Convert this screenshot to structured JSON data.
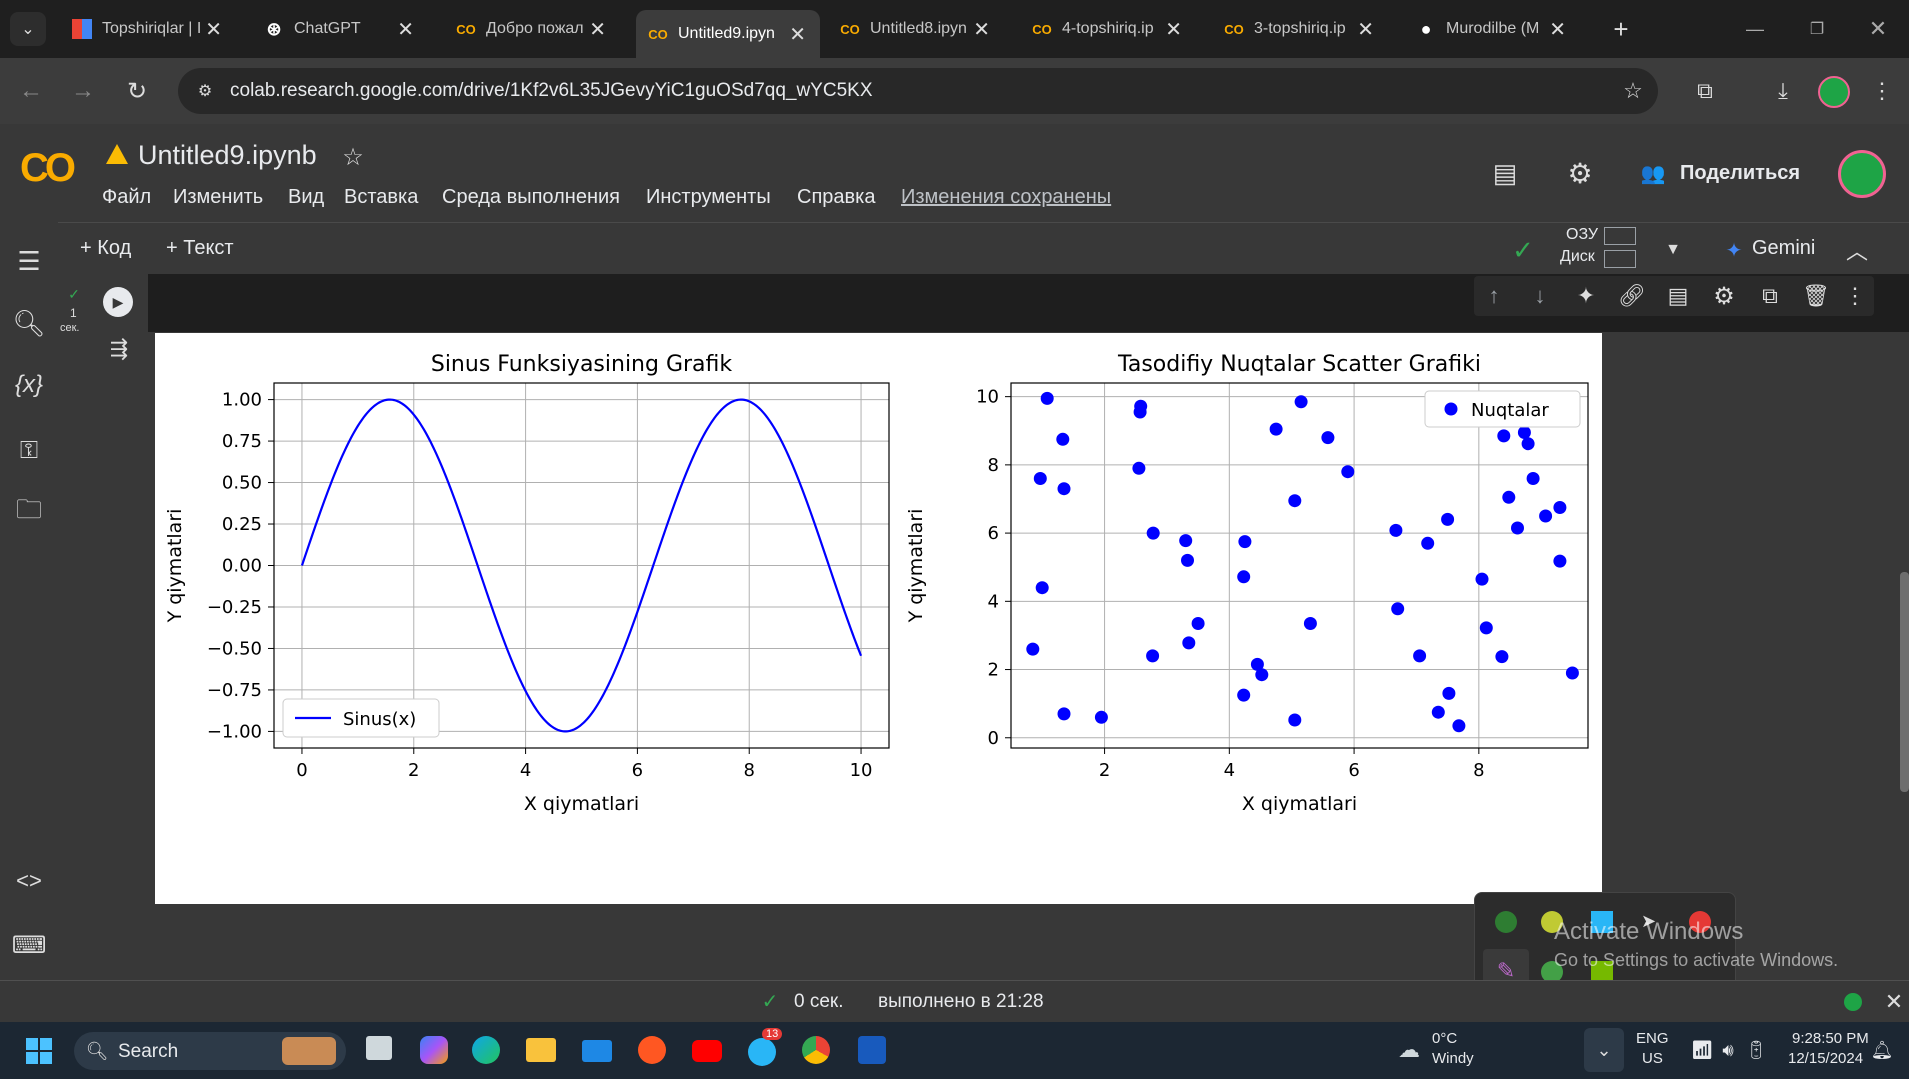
{
  "browser": {
    "tabs": [
      {
        "title": "Topshiriqlar | I",
        "icon": "grid-favicon"
      },
      {
        "title": "ChatGPT",
        "icon": "chatgpt-favicon"
      },
      {
        "title": "Добро пожал",
        "icon": "colab-favicon"
      },
      {
        "title": "Untitled9.ipyn",
        "icon": "colab-favicon"
      },
      {
        "title": "Untitled8.ipyn",
        "icon": "colab-favicon"
      },
      {
        "title": "4-topshiriq.ip",
        "icon": "colab-favicon"
      },
      {
        "title": "3-topshiriq.ip",
        "icon": "colab-favicon"
      },
      {
        "title": "Murodilbe (M",
        "icon": "github-favicon"
      }
    ],
    "url": "colab.research.google.com/drive/1Kf2v6L35JGevyYiC1guOSd7qq_wYC5KX"
  },
  "colab": {
    "logo": "CO",
    "notebook_title": "Untitled9.ipynb",
    "menu": [
      "Файл",
      "Изменить",
      "Вид",
      "Вставка",
      "Среда выполнения",
      "Инструменты",
      "Справка"
    ],
    "saved_status": "Изменения сохранены",
    "share_label": "Поделиться",
    "add_code": "+ Код",
    "add_text": "+ Текст",
    "ram_label": "ОЗУ",
    "disk_label": "Диск",
    "gemini_label": "Gemini",
    "cell_exec_count": "1",
    "cell_exec_time": "сек."
  },
  "status": {
    "time_taken": "0 сек.",
    "completed": "выполнено в 21:28"
  },
  "popup": {
    "activate_title": "Activate Windows",
    "activate_sub": "Go to Settings to activate Windows."
  },
  "taskbar": {
    "search_label": "Search",
    "weather_temp": "0°C",
    "weather_desc": "Windy",
    "lang": "ENG",
    "region": "US",
    "time": "9:28:50 PM",
    "date": "12/15/2024",
    "telegram_badge": "13"
  },
  "colors": {
    "series": "#0000ff",
    "grid": "#b0b0b0"
  },
  "chart_data": [
    {
      "type": "line",
      "title": "Sinus Funksiyasining Grafik",
      "xlabel": "X qiymatlari",
      "ylabel": "Y qiymatlari",
      "xlim": [
        0,
        10
      ],
      "ylim": [
        -1.0,
        1.0
      ],
      "xticks": [
        "0",
        "2",
        "4",
        "6",
        "8",
        "10"
      ],
      "yticks": [
        "1.00",
        "0.75",
        "0.50",
        "0.25",
        "0.00",
        "−0.25",
        "−0.50",
        "−0.75",
        "−1.00"
      ],
      "function": "sin(x)",
      "x": [
        0,
        0.25,
        0.5,
        0.75,
        1,
        1.25,
        1.5,
        1.75,
        2,
        2.25,
        2.5,
        2.75,
        3,
        3.25,
        3.5,
        3.75,
        4,
        4.25,
        4.5,
        4.75,
        5,
        5.25,
        5.5,
        5.75,
        6,
        6.25,
        6.5,
        6.75,
        7,
        7.25,
        7.5,
        7.75,
        8,
        8.25,
        8.5,
        8.75,
        9,
        9.25,
        9.5,
        9.75,
        10
      ],
      "series": [
        {
          "name": "Sinus(x)",
          "y": [
            0,
            0.247,
            0.479,
            0.682,
            0.841,
            0.949,
            0.997,
            0.984,
            0.909,
            0.778,
            0.598,
            0.382,
            0.141,
            -0.108,
            -0.351,
            -0.572,
            -0.757,
            -0.895,
            -0.978,
            -0.999,
            -0.959,
            -0.859,
            -0.706,
            -0.508,
            -0.279,
            -0.033,
            0.215,
            0.451,
            0.657,
            0.823,
            0.938,
            0.995,
            0.989,
            0.923,
            0.798,
            0.625,
            0.412,
            0.174,
            -0.075,
            -0.319,
            -0.544
          ]
        }
      ],
      "legend": "lower-left",
      "grid": true
    },
    {
      "type": "scatter",
      "title": "Tasodifiy Nuqtalar Scatter Grafiki",
      "xlabel": "X qiymatlari",
      "ylabel": "Y qiymatlari",
      "xlim": [
        0.5,
        9.75
      ],
      "ylim": [
        -0.3,
        10.4
      ],
      "xticks": [
        "2",
        "4",
        "6",
        "8"
      ],
      "yticks": [
        "0",
        "2",
        "4",
        "6",
        "8",
        "10"
      ],
      "series": [
        {
          "name": "Nuqtalar",
          "points": [
            [
              0.85,
              2.6
            ],
            [
              0.97,
              7.6
            ],
            [
              1.0,
              4.4
            ],
            [
              1.08,
              9.95
            ],
            [
              1.33,
              8.75
            ],
            [
              1.35,
              7.3
            ],
            [
              1.35,
              0.7
            ],
            [
              1.95,
              0.6
            ],
            [
              2.55,
              7.9
            ],
            [
              2.57,
              9.55
            ],
            [
              2.58,
              9.72
            ],
            [
              2.78,
              6.0
            ],
            [
              2.77,
              2.4
            ],
            [
              3.3,
              5.78
            ],
            [
              3.33,
              5.2
            ],
            [
              3.35,
              2.78
            ],
            [
              3.5,
              3.35
            ],
            [
              4.23,
              4.72
            ],
            [
              4.25,
              5.75
            ],
            [
              4.23,
              1.25
            ],
            [
              4.45,
              2.15
            ],
            [
              4.52,
              1.85
            ],
            [
              4.75,
              9.05
            ],
            [
              5.05,
              6.95
            ],
            [
              5.05,
              0.52
            ],
            [
              5.15,
              9.85
            ],
            [
              5.3,
              3.35
            ],
            [
              5.58,
              8.8
            ],
            [
              5.9,
              7.8
            ],
            [
              6.67,
              6.08
            ],
            [
              6.7,
              3.78
            ],
            [
              7.05,
              2.4
            ],
            [
              7.18,
              5.7
            ],
            [
              7.35,
              0.75
            ],
            [
              7.5,
              6.4
            ],
            [
              7.52,
              1.3
            ],
            [
              7.68,
              0.35
            ],
            [
              8.05,
              4.65
            ],
            [
              8.12,
              3.22
            ],
            [
              8.37,
              2.38
            ],
            [
              8.4,
              8.85
            ],
            [
              8.48,
              7.05
            ],
            [
              8.62,
              6.15
            ],
            [
              8.73,
              8.95
            ],
            [
              8.79,
              8.62
            ],
            [
              8.87,
              7.6
            ],
            [
              9.07,
              6.5
            ],
            [
              9.3,
              6.75
            ],
            [
              9.3,
              5.18
            ],
            [
              9.5,
              1.9
            ]
          ]
        }
      ],
      "legend": "top-right",
      "grid": true
    }
  ]
}
